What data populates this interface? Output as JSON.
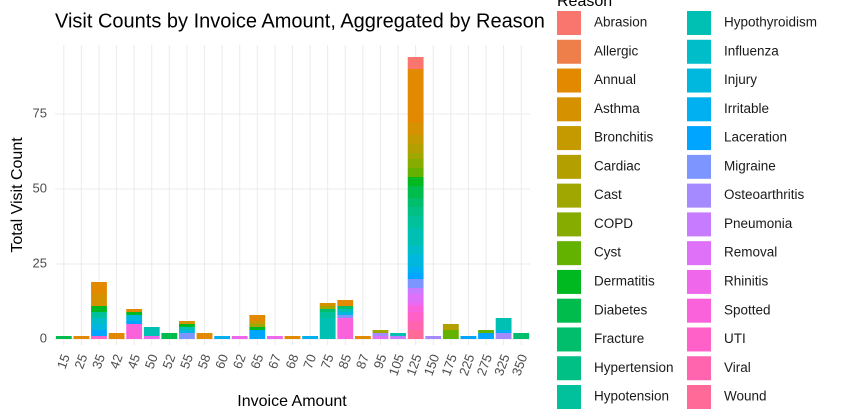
{
  "chart_data": {
    "type": "stacked-bar",
    "title": "Visit Counts by Invoice Amount, Aggregated by Reason",
    "x_label": "Invoice Amount",
    "y_label": "Total Visit Count",
    "legend_title": "Reason",
    "categories": [
      "15",
      "25",
      "35",
      "42",
      "45",
      "50",
      "52",
      "55",
      "58",
      "60",
      "62",
      "65",
      "67",
      "68",
      "70",
      "75",
      "85",
      "87",
      "95",
      "105",
      "125",
      "150",
      "175",
      "225",
      "275",
      "325",
      "350"
    ],
    "ylim": [
      -2,
      98
    ],
    "yticks": [
      0,
      25,
      50,
      75
    ],
    "grid": true,
    "legend": "right",
    "series": [
      {
        "name": "Abrasion",
        "color": "#F8766D",
        "values": [
          0,
          0,
          0,
          0,
          0,
          0,
          0,
          0,
          0,
          0,
          0,
          0,
          0,
          0,
          0,
          0,
          0,
          0,
          0,
          0,
          4,
          0,
          0,
          0,
          0,
          0,
          0
        ]
      },
      {
        "name": "Allergic",
        "color": "#EF7F4A",
        "values": [
          0,
          0,
          0,
          0,
          0,
          0,
          0,
          0,
          0,
          0,
          0,
          0,
          0,
          0,
          0,
          0,
          0,
          0,
          0,
          0,
          0,
          0,
          0,
          0,
          0,
          0,
          0
        ]
      },
      {
        "name": "Annual",
        "color": "#E38900",
        "values": [
          0,
          1,
          4,
          2,
          1,
          0,
          0,
          0,
          2,
          0,
          0,
          2,
          0,
          1,
          0,
          0,
          2,
          1,
          0,
          0,
          18,
          0,
          0,
          0,
          0,
          0,
          0
        ]
      },
      {
        "name": "Asthma",
        "color": "#D59100",
        "values": [
          0,
          0,
          4,
          0,
          0,
          0,
          0,
          1,
          0,
          0,
          0,
          0,
          0,
          0,
          0,
          1,
          0,
          0,
          0,
          0,
          4,
          0,
          0,
          0,
          0,
          0,
          0
        ]
      },
      {
        "name": "Bronchitis",
        "color": "#C49A00",
        "values": [
          0,
          0,
          0,
          0,
          0,
          0,
          0,
          0,
          0,
          0,
          0,
          1,
          0,
          0,
          0,
          0,
          0,
          0,
          0,
          0,
          3,
          0,
          0,
          0,
          0,
          0,
          0
        ]
      },
      {
        "name": "Cardiac",
        "color": "#B3A000",
        "values": [
          0,
          0,
          0,
          0,
          0,
          0,
          0,
          0,
          0,
          0,
          0,
          0,
          0,
          0,
          0,
          0,
          0,
          0,
          0,
          0,
          3,
          0,
          2,
          0,
          0,
          0,
          0
        ]
      },
      {
        "name": "Cast",
        "color": "#9FA700",
        "values": [
          0,
          0,
          0,
          0,
          0,
          0,
          0,
          0,
          0,
          0,
          0,
          1,
          0,
          0,
          0,
          1,
          0,
          0,
          1,
          0,
          2,
          0,
          0,
          0,
          0,
          0,
          0
        ]
      },
      {
        "name": "COPD",
        "color": "#86AC00",
        "values": [
          0,
          0,
          0,
          0,
          0,
          0,
          0,
          0,
          0,
          0,
          0,
          0,
          0,
          0,
          0,
          0,
          0,
          0,
          0,
          0,
          3,
          0,
          0,
          0,
          0,
          0,
          0
        ]
      },
      {
        "name": "Cyst",
        "color": "#64B200",
        "values": [
          0,
          0,
          0,
          0,
          0,
          0,
          0,
          0,
          0,
          0,
          0,
          0,
          0,
          0,
          0,
          0,
          0,
          0,
          0,
          0,
          3,
          0,
          3,
          0,
          1,
          0,
          0
        ]
      },
      {
        "name": "Dermatitis",
        "color": "#00B81F",
        "values": [
          0,
          0,
          2,
          0,
          1,
          0,
          0,
          1,
          0,
          0,
          0,
          1,
          0,
          0,
          0,
          0,
          0,
          0,
          0,
          0,
          3,
          0,
          0,
          0,
          0,
          0,
          0
        ]
      },
      {
        "name": "Diabetes",
        "color": "#00BC4C",
        "values": [
          1,
          0,
          0,
          0,
          0,
          0,
          2,
          0,
          0,
          0,
          0,
          0,
          0,
          0,
          0,
          0,
          0,
          0,
          0,
          0,
          4,
          0,
          0,
          0,
          0,
          0,
          0
        ]
      },
      {
        "name": "Fracture",
        "color": "#00BE6C",
        "values": [
          0,
          0,
          0,
          0,
          0,
          0,
          0,
          0,
          0,
          0,
          0,
          0,
          0,
          0,
          0,
          1,
          1,
          0,
          0,
          0,
          3,
          0,
          0,
          0,
          0,
          0,
          2
        ]
      },
      {
        "name": "Hypertension",
        "color": "#00C086",
        "values": [
          0,
          0,
          0,
          0,
          0,
          0,
          0,
          0,
          0,
          0,
          0,
          0,
          0,
          0,
          0,
          0,
          0,
          0,
          0,
          0,
          3,
          0,
          0,
          0,
          0,
          0,
          0
        ]
      },
      {
        "name": "Hypotension",
        "color": "#00C19C",
        "values": [
          0,
          0,
          2,
          0,
          0,
          0,
          0,
          0,
          0,
          0,
          0,
          0,
          0,
          0,
          0,
          2,
          0,
          0,
          0,
          0,
          4,
          0,
          0,
          0,
          0,
          0,
          0
        ]
      },
      {
        "name": "Hypothyroidism",
        "color": "#00C0B4",
        "values": [
          0,
          0,
          0,
          0,
          0,
          3,
          0,
          1,
          0,
          0,
          0,
          0,
          0,
          0,
          0,
          7,
          1,
          0,
          0,
          1,
          6,
          0,
          0,
          0,
          0,
          4,
          0
        ]
      },
      {
        "name": "Influenza",
        "color": "#00BDCA",
        "values": [
          0,
          0,
          2,
          0,
          0,
          0,
          0,
          0,
          0,
          0,
          0,
          0,
          0,
          0,
          0,
          0,
          0,
          0,
          0,
          0,
          3,
          0,
          0,
          0,
          0,
          0,
          0
        ]
      },
      {
        "name": "Injury",
        "color": "#00B8DE",
        "values": [
          0,
          0,
          2,
          0,
          2,
          0,
          0,
          1,
          0,
          0,
          0,
          0,
          0,
          0,
          0,
          0,
          1,
          0,
          0,
          0,
          4,
          0,
          0,
          0,
          0,
          0,
          0
        ]
      },
      {
        "name": "Irritable",
        "color": "#00B0F0",
        "values": [
          0,
          0,
          0,
          0,
          0,
          0,
          0,
          0,
          0,
          1,
          0,
          0,
          0,
          0,
          1,
          0,
          0,
          0,
          0,
          0,
          2,
          0,
          0,
          0,
          0,
          1,
          0
        ]
      },
      {
        "name": "Laceration",
        "color": "#00A5FF",
        "values": [
          0,
          0,
          2,
          0,
          1,
          0,
          0,
          0,
          0,
          0,
          0,
          3,
          0,
          0,
          0,
          0,
          0,
          0,
          0,
          0,
          2,
          0,
          0,
          1,
          2,
          0,
          0
        ]
      },
      {
        "name": "Migraine",
        "color": "#7D96FF",
        "values": [
          0,
          0,
          0,
          0,
          0,
          0,
          0,
          2,
          0,
          0,
          0,
          0,
          0,
          0,
          0,
          0,
          1,
          0,
          0,
          0,
          3,
          0,
          0,
          0,
          0,
          0,
          0
        ]
      },
      {
        "name": "Osteoarthritis",
        "color": "#A58AFF",
        "values": [
          0,
          0,
          0,
          0,
          0,
          0,
          0,
          0,
          0,
          0,
          0,
          0,
          0,
          0,
          0,
          0,
          0,
          0,
          1,
          0,
          0,
          1,
          0,
          0,
          0,
          2,
          0
        ]
      },
      {
        "name": "Pneumonia",
        "color": "#C77CFF",
        "values": [
          0,
          0,
          0,
          0,
          0,
          0,
          0,
          0,
          0,
          0,
          0,
          0,
          0,
          0,
          0,
          0,
          0,
          0,
          0,
          1,
          2,
          0,
          0,
          0,
          0,
          0,
          0
        ]
      },
      {
        "name": "Removal",
        "color": "#DF70F8",
        "values": [
          0,
          0,
          0,
          0,
          0,
          0,
          0,
          0,
          0,
          0,
          0,
          0,
          0,
          0,
          0,
          0,
          0,
          0,
          1,
          0,
          3,
          0,
          0,
          0,
          0,
          0,
          0
        ]
      },
      {
        "name": "Rhinitis",
        "color": "#EF67EB",
        "values": [
          0,
          0,
          0,
          0,
          0,
          1,
          0,
          0,
          0,
          0,
          1,
          0,
          1,
          0,
          0,
          0,
          0,
          0,
          0,
          0,
          1,
          0,
          0,
          0,
          0,
          0,
          0
        ]
      },
      {
        "name": "Spotted",
        "color": "#FA62DB",
        "values": [
          0,
          0,
          0,
          0,
          5,
          0,
          0,
          0,
          0,
          0,
          0,
          0,
          0,
          0,
          0,
          0,
          7,
          0,
          0,
          0,
          2,
          0,
          0,
          0,
          0,
          0,
          0
        ]
      },
      {
        "name": "UTI",
        "color": "#FF61C9",
        "values": [
          0,
          0,
          1,
          0,
          0,
          0,
          0,
          0,
          0,
          0,
          0,
          0,
          0,
          0,
          0,
          0,
          0,
          0,
          0,
          0,
          3,
          0,
          0,
          0,
          0,
          0,
          0
        ]
      },
      {
        "name": "Viral",
        "color": "#FF65AE",
        "values": [
          0,
          0,
          0,
          0,
          0,
          0,
          0,
          0,
          0,
          0,
          0,
          0,
          0,
          0,
          0,
          0,
          0,
          0,
          0,
          0,
          3,
          0,
          0,
          0,
          0,
          0,
          0
        ]
      },
      {
        "name": "Wound",
        "color": "#FF6A98",
        "values": [
          0,
          0,
          0,
          0,
          0,
          0,
          0,
          0,
          0,
          0,
          0,
          0,
          0,
          0,
          0,
          0,
          0,
          0,
          0,
          0,
          3,
          0,
          0,
          0,
          0,
          0,
          0
        ]
      }
    ]
  }
}
